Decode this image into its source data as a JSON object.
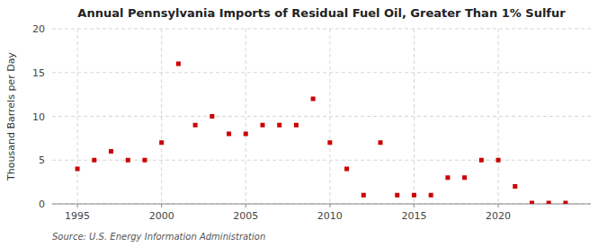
{
  "chart_data": {
    "type": "scatter",
    "title": "Annual Pennsylvania Imports of Residual Fuel Oil, Greater Than 1% Sulfur",
    "ylabel": "Thousand Barrels per Day",
    "source": "Source: U.S. Energy Information Administration",
    "x": [
      1995,
      1996,
      1997,
      1998,
      1999,
      2000,
      2001,
      2002,
      2003,
      2004,
      2005,
      2006,
      2007,
      2008,
      2009,
      2010,
      2011,
      2012,
      2013,
      2014,
      2015,
      2016,
      2017,
      2018,
      2019,
      2020,
      2021,
      2022,
      2023,
      2024
    ],
    "values": [
      4.0,
      5.0,
      6.0,
      5.0,
      5.0,
      7.0,
      16.0,
      9.0,
      10.0,
      8.0,
      8.0,
      9.0,
      9.0,
      9.0,
      12.0,
      7.0,
      4.0,
      1.0,
      7.0,
      1.0,
      1.0,
      1.0,
      3.0,
      3.0,
      5.0,
      5.0,
      2.0,
      0.1,
      0.1,
      0.1
    ],
    "color": "#cc0000",
    "marker": "square",
    "xlim": [
      1993.5,
      2025.5
    ],
    "xticks": [
      1995,
      2000,
      2005,
      2010,
      2015,
      2020
    ],
    "ylim": [
      0,
      20
    ],
    "yticks": [
      0,
      5,
      10,
      15,
      20
    ],
    "grid": true
  }
}
